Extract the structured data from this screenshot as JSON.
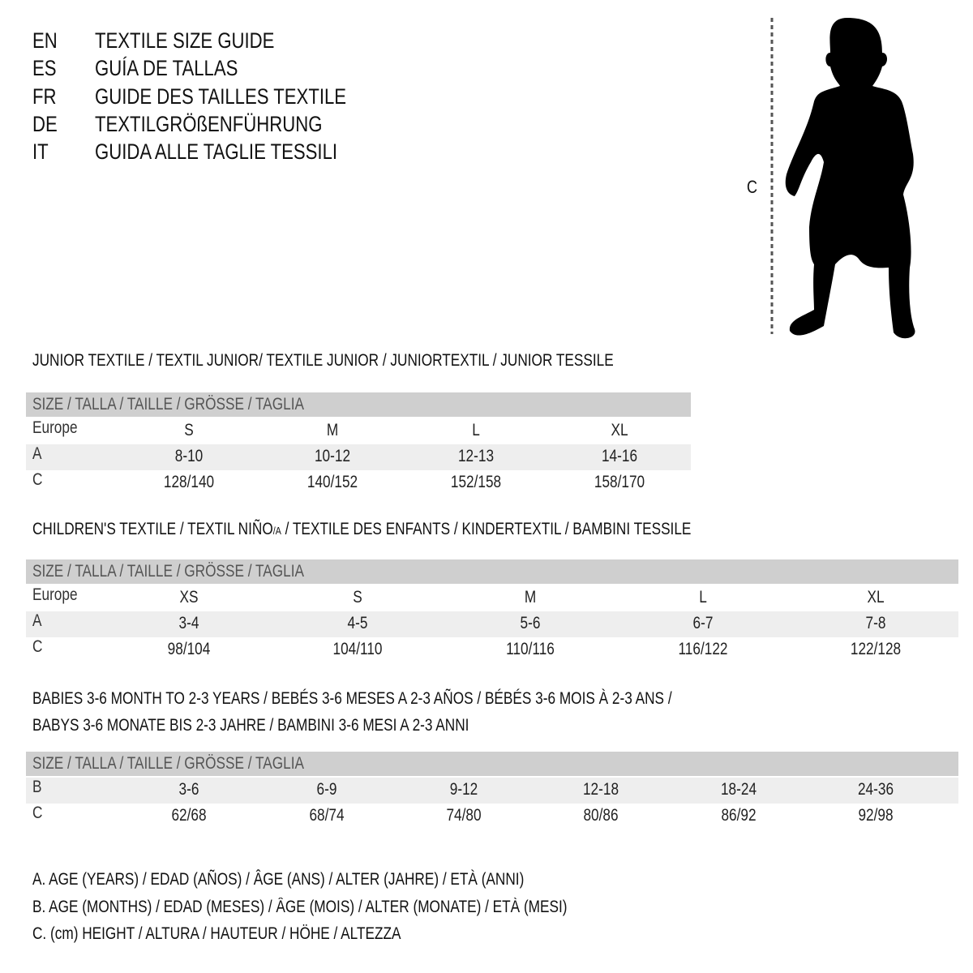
{
  "header": {
    "languages": [
      {
        "code": "EN",
        "title": "TEXTILE SIZE GUIDE"
      },
      {
        "code": "ES",
        "title": "GUÍA DE TALLAS"
      },
      {
        "code": "FR",
        "title": "GUIDE DES TAILLES TEXTILE"
      },
      {
        "code": "DE",
        "title": "TEXTILGRÖßENFÜHRUNG"
      },
      {
        "code": "IT",
        "title": "GUIDA ALLE TAGLIE TESSILI"
      }
    ]
  },
  "figure": {
    "measure_label": "C"
  },
  "junior": {
    "title": "JUNIOR TEXTILE / TEXTIL JUNIOR/ TEXTILE JUNIOR / JUNIORTEXTIL / JUNIOR TESSILE",
    "header": "SIZE / TALLA / TAILLE / GRÖSSE / TAGLIA",
    "rows": [
      {
        "label": "Europe",
        "values": [
          "S",
          "M",
          "L",
          "XL"
        ]
      },
      {
        "label": "A",
        "values": [
          "8-10",
          "10-12",
          "12-13",
          "14-16"
        ]
      },
      {
        "label": "C",
        "values": [
          "128/140",
          "140/152",
          "152/158",
          "158/170"
        ]
      }
    ]
  },
  "children": {
    "title": "CHILDREN'S TEXTILE / TEXTIL NIÑO",
    "title_sub": "/A",
    "title_rest": " / TEXTILE DES ENFANTS / KINDERTEXTIL / BAMBINI TESSILE",
    "header": "SIZE / TALLA / TAILLE / GRÖSSE / TAGLIA",
    "rows": [
      {
        "label": "Europe",
        "values": [
          "XS",
          "S",
          "M",
          "L",
          "XL"
        ]
      },
      {
        "label": "A",
        "values": [
          "3-4",
          "4-5",
          "5-6",
          "6-7",
          "7-8"
        ]
      },
      {
        "label": "C",
        "values": [
          "98/104",
          "104/110",
          "110/116",
          "116/122",
          "122/128"
        ]
      }
    ]
  },
  "babies": {
    "title_line1": "BABIES 3-6 MONTH TO 2-3 YEARS / BEBÉS 3-6 MESES A 2-3 AÑOS / BÉBÉS 3-6 MOIS À 2-3 ANS /",
    "title_line2": "BABYS 3-6 MONATE BIS 2-3 JAHRE / BAMBINI 3-6 MESI A 2-3 ANNI",
    "header": "SIZE / TALLA / TAILLE / GRÖSSE / TAGLIA",
    "rows": [
      {
        "label": "B",
        "values": [
          "3-6",
          "6-9",
          "9-12",
          "12-18",
          "18-24",
          "24-36"
        ]
      },
      {
        "label": "C",
        "values": [
          "62/68",
          "68/74",
          "74/80",
          "80/86",
          "86/92",
          "92/98"
        ]
      }
    ]
  },
  "legend": [
    "A. AGE (YEARS) / EDAD (AÑOS) / ÂGE (ANS) / ALTER (JAHRE) / ETÀ (ANNI)",
    "B. AGE (MONTHS) / EDAD (MESES) / ÂGE (MOIS) / ALTER (MONATE) / ETÀ (MESI)",
    "C. (cm) HEIGHT / ALTURA / HAUTEUR / HÖHE / ALTEZZA"
  ]
}
